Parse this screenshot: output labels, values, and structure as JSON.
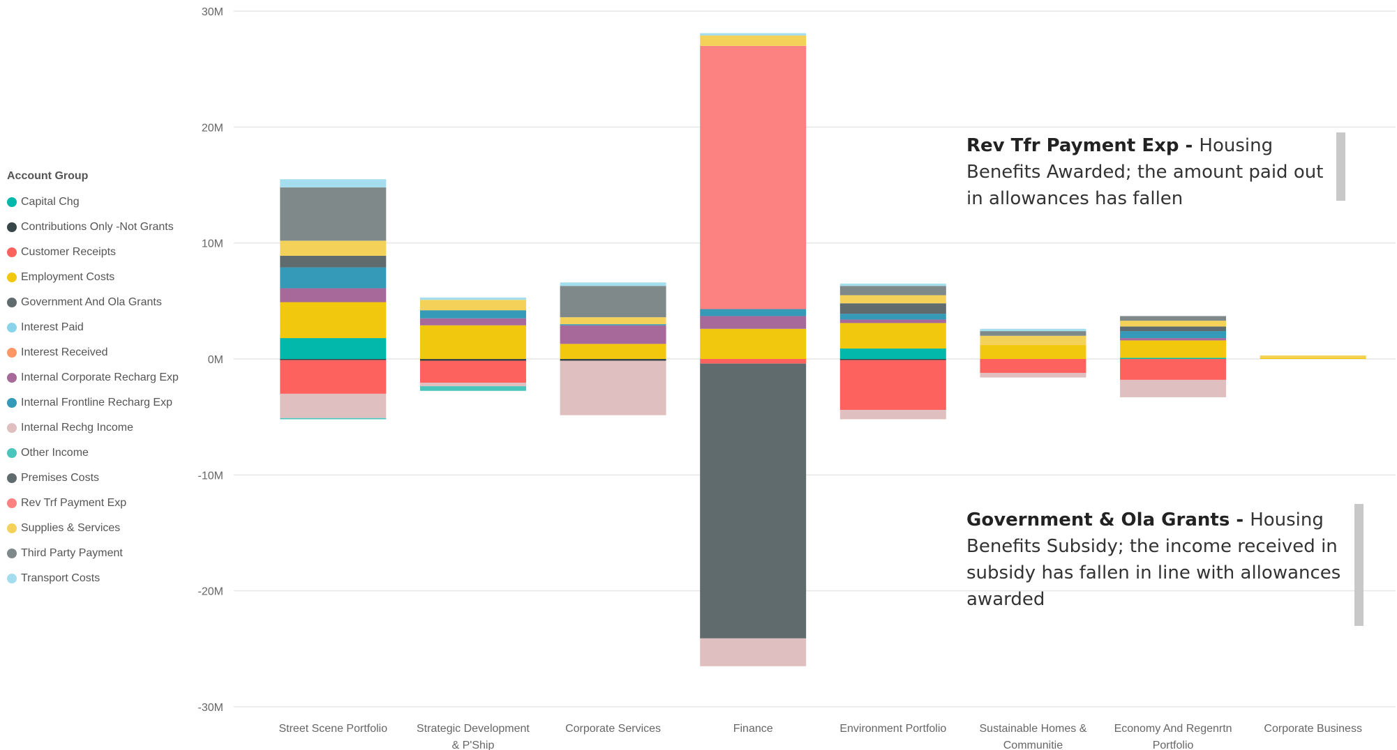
{
  "legend": {
    "title": "Account Group",
    "items": [
      {
        "label": "Capital Chg",
        "color": "#01B8AA"
      },
      {
        "label": "Contributions Only -Not Grants",
        "color": "#374649"
      },
      {
        "label": "Customer Receipts",
        "color": "#FD625E"
      },
      {
        "label": "Employment Costs",
        "color": "#F2C80F"
      },
      {
        "label": "Government And Ola Grants",
        "color": "#5F6B6D"
      },
      {
        "label": "Interest Paid",
        "color": "#8AD4EB"
      },
      {
        "label": "Interest Received",
        "color": "#FE9666"
      },
      {
        "label": "Internal Corporate Recharg Exp",
        "color": "#A66999"
      },
      {
        "label": "Internal Frontline Recharg Exp",
        "color": "#3599B8"
      },
      {
        "label": "Internal Rechg Income",
        "color": "#DFBFBF"
      },
      {
        "label": "Other Income",
        "color": "#4AC5BB"
      },
      {
        "label": "Premises Costs",
        "color": "#5F6B6D"
      },
      {
        "label": "Rev Trf Payment Exp",
        "color": "#FB8281"
      },
      {
        "label": "Supplies & Services",
        "color": "#F4D25A"
      },
      {
        "label": "Third Party Payment",
        "color": "#7F898A"
      },
      {
        "label": "Transport Costs",
        "color": "#A4DDEE"
      }
    ]
  },
  "annotations": {
    "top": {
      "bold": "Rev Tfr Payment Exp - ",
      "text": "Housing Benefits Awarded; the amount paid out in allowances has fallen"
    },
    "bottom": {
      "bold": "Government & Ola Grants - ",
      "text": "Housing Benefits Subsidy; the income received in subsidy has fallen in line with allowances awarded"
    }
  },
  "chart_data": {
    "type": "bar",
    "stacked": true,
    "categories": [
      "Street Scene Portfolio",
      "Strategic Development & P'Ship",
      "Corporate Services",
      "Finance",
      "Environment Portfolio",
      "Sustainable Homes & Communitie",
      "Economy And Regenrtn Portfolio",
      "Corporate Business"
    ],
    "category_lines": [
      [
        "Street Scene Portfolio"
      ],
      [
        "Strategic Development",
        "& P'Ship"
      ],
      [
        "Corporate Services"
      ],
      [
        "Finance"
      ],
      [
        "Environment Portfolio"
      ],
      [
        "Sustainable Homes &",
        "Communitie"
      ],
      [
        "Economy And Regenrtn",
        "Portfolio"
      ],
      [
        "Corporate Business"
      ]
    ],
    "ylim": [
      -30,
      30
    ],
    "yunit": "M",
    "yticks": [
      30,
      20,
      10,
      0,
      -10,
      -20,
      -30
    ],
    "ytick_labels": [
      "30M",
      "20M",
      "10M",
      "0M",
      "-10M",
      "-20M",
      "-30M"
    ],
    "gridlines": true,
    "series": [
      {
        "name": "Capital Chg",
        "color": "#01B8AA",
        "values": [
          1.8,
          0,
          0,
          0,
          0.9,
          0,
          0.1,
          0
        ]
      },
      {
        "name": "Contributions Only -Not Grants",
        "color": "#374649",
        "values": [
          -0.1,
          -0.15,
          -0.15,
          0,
          -0.1,
          0,
          0,
          0
        ]
      },
      {
        "name": "Customer Receipts",
        "color": "#FD625E",
        "values": [
          -2.9,
          -1.9,
          0,
          -0.4,
          -4.3,
          -1.2,
          -1.8,
          0
        ]
      },
      {
        "name": "Employment Costs",
        "color": "#F2C80F",
        "values": [
          3.1,
          2.9,
          1.3,
          2.6,
          2.2,
          1.2,
          1.5,
          0.1
        ]
      },
      {
        "name": "Government And Ola Grants",
        "color": "#5F6B6D",
        "values": [
          0,
          0,
          0,
          -23.7,
          0,
          0,
          0,
          0
        ]
      },
      {
        "name": "Interest Paid",
        "color": "#8AD4EB",
        "values": [
          0,
          0,
          0,
          0,
          0,
          0,
          0,
          0
        ]
      },
      {
        "name": "Interest Received",
        "color": "#FE9666",
        "values": [
          0,
          0,
          0,
          0,
          0,
          0,
          0,
          0
        ]
      },
      {
        "name": "Internal Corporate Recharg Exp",
        "color": "#A66999",
        "values": [
          1.2,
          0.6,
          1.6,
          1.1,
          0.3,
          0,
          0.2,
          0
        ]
      },
      {
        "name": "Internal Frontline Recharg Exp",
        "color": "#3599B8",
        "values": [
          1.8,
          0.7,
          0.1,
          0.6,
          0.5,
          0,
          0.6,
          0
        ]
      },
      {
        "name": "Internal Rechg Income",
        "color": "#DFBFBF",
        "values": [
          -2.1,
          -0.3,
          -4.7,
          -2.4,
          -0.8,
          -0.4,
          -1.5,
          0
        ]
      },
      {
        "name": "Other Income",
        "color": "#4AC5BB",
        "values": [
          -0.1,
          -0.4,
          0,
          0,
          0,
          0,
          0,
          0
        ]
      },
      {
        "name": "Premises Costs",
        "color": "#5F6B6D",
        "values": [
          1.0,
          0,
          0,
          0,
          0.9,
          0,
          0.4,
          0
        ]
      },
      {
        "name": "Rev Trf Payment Exp",
        "color": "#FB8281",
        "values": [
          0,
          0,
          0,
          22.7,
          0,
          0,
          0,
          0
        ]
      },
      {
        "name": "Supplies & Services",
        "color": "#F4D25A",
        "values": [
          1.3,
          0.9,
          0.6,
          0.9,
          0.7,
          0.8,
          0.5,
          0.2
        ]
      },
      {
        "name": "Third Party Payment",
        "color": "#7F898A",
        "values": [
          4.6,
          0,
          2.7,
          0,
          0.8,
          0.4,
          0.4,
          0
        ]
      },
      {
        "name": "Transport Costs",
        "color": "#A4DDEE",
        "values": [
          0.7,
          0.2,
          0.3,
          0.2,
          0.2,
          0.2,
          0,
          0
        ]
      }
    ]
  }
}
